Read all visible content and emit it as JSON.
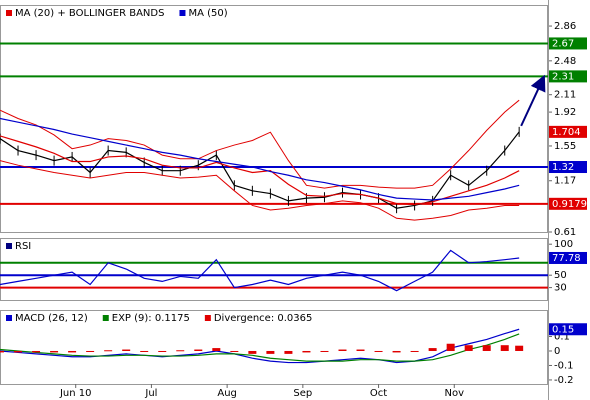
{
  "chart_data": [
    {
      "type": "line",
      "x": [
        0,
        5,
        10,
        15,
        20,
        25,
        30,
        35,
        40,
        45,
        50,
        55,
        60,
        65,
        70,
        75,
        80,
        85,
        90,
        95,
        100,
        105,
        110,
        115,
        120,
        125,
        130,
        135,
        140,
        144
      ],
      "xlim": [
        0,
        152
      ],
      "xticks": [
        {
          "value": 21,
          "label": "Jun 10"
        },
        {
          "value": 42,
          "label": "Jul"
        },
        {
          "value": 63,
          "label": "Aug"
        },
        {
          "value": 84,
          "label": "Sep"
        },
        {
          "value": 105,
          "label": "Oct"
        },
        {
          "value": 126,
          "label": "Nov"
        }
      ],
      "ylim": [
        0.61,
        3.09
      ],
      "yticks": [
        2.86,
        2.48,
        2.11,
        1.92,
        1.55,
        1.17,
        0.61
      ],
      "series": [
        {
          "color": "#000000",
          "values": [
            1.63,
            1.5,
            1.45,
            1.39,
            1.43,
            1.26,
            1.5,
            1.48,
            1.37,
            1.28,
            1.28,
            1.34,
            1.45,
            1.12,
            1.06,
            1.03,
            0.95,
            0.98,
            0.99,
            1.04,
            1.02,
            0.98,
            0.87,
            0.9,
            0.95,
            1.23,
            1.12,
            1.28,
            1.5,
            1.704
          ]
        },
        {
          "name": "MA (20) + BOLLINGER BANDS",
          "color": "#e00000",
          "values": [
            1.66,
            1.6,
            1.54,
            1.47,
            1.38,
            1.38,
            1.43,
            1.44,
            1.41,
            1.34,
            1.31,
            1.31,
            1.37,
            1.31,
            1.26,
            1.28,
            1.13,
            1.01,
            1.0,
            1.03,
            1.02,
            0.98,
            0.92,
            0.91,
            0.94,
            1.0,
            1.06,
            1.12,
            1.2,
            1.28
          ],
          "upper": [
            1.94,
            1.85,
            1.78,
            1.67,
            1.52,
            1.56,
            1.63,
            1.61,
            1.56,
            1.45,
            1.41,
            1.41,
            1.5,
            1.56,
            1.61,
            1.7,
            1.39,
            1.12,
            1.09,
            1.12,
            1.12,
            1.1,
            1.09,
            1.09,
            1.12,
            1.3,
            1.5,
            1.72,
            1.92,
            2.05
          ],
          "lower": [
            1.39,
            1.34,
            1.3,
            1.26,
            1.23,
            1.2,
            1.23,
            1.26,
            1.26,
            1.23,
            1.2,
            1.21,
            1.23,
            1.06,
            0.9,
            0.85,
            0.87,
            0.9,
            0.92,
            0.95,
            0.93,
            0.87,
            0.76,
            0.74,
            0.76,
            0.79,
            0.85,
            0.87,
            0.9,
            0.9
          ]
        },
        {
          "name": "MA (50)",
          "color": "#0000cc",
          "values": [
            1.85,
            1.81,
            1.77,
            1.73,
            1.68,
            1.64,
            1.6,
            1.56,
            1.52,
            1.48,
            1.45,
            1.41,
            1.38,
            1.35,
            1.32,
            1.27,
            1.23,
            1.18,
            1.15,
            1.11,
            1.07,
            1.02,
            0.98,
            0.97,
            0.96,
            0.98,
            1.0,
            1.04,
            1.08,
            1.12
          ]
        }
      ],
      "levels": [
        {
          "value": 2.67,
          "color": "#008000"
        },
        {
          "value": 2.31,
          "color": "#008000"
        },
        {
          "value": 1.32,
          "color": "#0000cc"
        },
        {
          "value": 0.9179,
          "color": "#e00000"
        }
      ]
    },
    {
      "type": "line",
      "title": "RSI",
      "ylim": [
        10,
        110
      ],
      "yticks": [
        100,
        50,
        30
      ],
      "series": [
        {
          "color": "#0000cc",
          "values": [
            35,
            40,
            45,
            50,
            55,
            35,
            70,
            60,
            45,
            40,
            48,
            45,
            75,
            30,
            35,
            42,
            35,
            45,
            50,
            55,
            50,
            40,
            25,
            40,
            55,
            90,
            70,
            72,
            75,
            77.78
          ]
        }
      ],
      "levels": [
        {
          "value": 70,
          "color": "#008000"
        },
        {
          "value": 50,
          "color": "#0000cc"
        },
        {
          "value": 30,
          "color": "#e00000"
        }
      ]
    },
    {
      "type": "line",
      "ylim": [
        -0.228,
        0.283
      ],
      "yticks": [
        0.1,
        0,
        -0.1,
        -0.2
      ],
      "series": [
        {
          "name": "MACD (26, 12)",
          "color": "#0000cc",
          "values": [
            0.0,
            -0.01,
            -0.02,
            -0.03,
            -0.04,
            -0.04,
            -0.03,
            -0.02,
            -0.03,
            -0.04,
            -0.03,
            -0.02,
            0.0,
            -0.02,
            -0.05,
            -0.07,
            -0.08,
            -0.08,
            -0.07,
            -0.06,
            -0.05,
            -0.06,
            -0.08,
            -0.07,
            -0.04,
            0.02,
            0.05,
            0.08,
            0.12,
            0.15
          ]
        },
        {
          "name": "EXP (9): 0.1175",
          "color": "#008000",
          "values": [
            0.01,
            0.0,
            -0.01,
            -0.02,
            -0.03,
            -0.035,
            -0.035,
            -0.03,
            -0.03,
            -0.035,
            -0.035,
            -0.03,
            -0.02,
            -0.02,
            -0.03,
            -0.05,
            -0.06,
            -0.07,
            -0.07,
            -0.07,
            -0.06,
            -0.06,
            -0.07,
            -0.07,
            -0.06,
            -0.03,
            0.01,
            0.04,
            0.08,
            0.1175
          ]
        },
        {
          "name": "Divergence: 0.0365",
          "color": "#e00000",
          "kind": "bar",
          "values": [
            -0.01,
            -0.01,
            -0.01,
            -0.01,
            -0.01,
            -0.005,
            0.005,
            0.01,
            0.0,
            -0.005,
            0.005,
            0.01,
            0.02,
            0.0,
            -0.02,
            -0.02,
            -0.02,
            -0.01,
            0.0,
            0.01,
            0.01,
            0.0,
            -0.01,
            0.0,
            0.02,
            0.05,
            0.04,
            0.04,
            0.04,
            0.0365
          ]
        }
      ]
    }
  ]
}
